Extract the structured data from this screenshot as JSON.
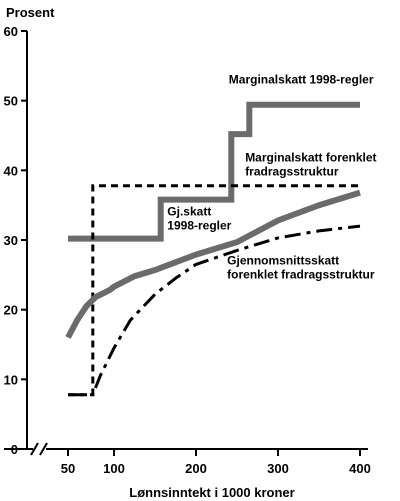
{
  "chart_data": {
    "type": "line",
    "title": "",
    "ylabel": "Prosent",
    "xlabel": "Lønnsinntekt i 1000 kroner",
    "xlim": [
      50,
      400
    ],
    "ylim": [
      0,
      60
    ],
    "x_ticks": [
      50,
      100,
      200,
      300,
      400
    ],
    "y_ticks": [
      0,
      10,
      20,
      30,
      40,
      50,
      60
    ],
    "x_axis_break": true,
    "grid": false,
    "series": [
      {
        "key": "marginal_1998",
        "style": "solid-thick",
        "color": "#6b6b6b",
        "points": [
          [
            50,
            30.2
          ],
          [
            157,
            30.2
          ],
          [
            157,
            35.8
          ],
          [
            243,
            35.8
          ],
          [
            243,
            45.2
          ],
          [
            265,
            45.2
          ],
          [
            265,
            49.4
          ],
          [
            400,
            49.4
          ]
        ]
      },
      {
        "key": "marginal_forenklet",
        "style": "dashed-short",
        "color": "#000000",
        "points": [
          [
            50,
            7.8
          ],
          [
            77,
            7.8
          ],
          [
            77,
            37.8
          ],
          [
            400,
            37.8
          ]
        ]
      },
      {
        "key": "gjsnitt_1998",
        "style": "solid-thick",
        "color": "#6b6b6b",
        "points": [
          [
            50,
            16
          ],
          [
            60,
            18.5
          ],
          [
            70,
            20.5
          ],
          [
            80,
            21.8
          ],
          [
            95,
            22.8
          ],
          [
            100,
            23.3
          ],
          [
            125,
            24.8
          ],
          [
            150,
            25.7
          ],
          [
            200,
            27.9
          ],
          [
            250,
            29.7
          ],
          [
            300,
            32.8
          ],
          [
            350,
            35
          ],
          [
            400,
            36.8
          ]
        ]
      },
      {
        "key": "gjsnitt_forenklet",
        "style": "dash-dot",
        "color": "#000000",
        "points": [
          [
            50,
            7.8
          ],
          [
            77,
            7.8
          ],
          [
            85,
            10.5
          ],
          [
            100,
            14.5
          ],
          [
            120,
            18.5
          ],
          [
            150,
            22.2
          ],
          [
            175,
            24.5
          ],
          [
            200,
            26.5
          ],
          [
            250,
            28.5
          ],
          [
            300,
            30.3
          ],
          [
            350,
            31.3
          ],
          [
            400,
            32
          ]
        ]
      }
    ],
    "annotations": [
      {
        "id": "ann-marginal-1998",
        "lines": [
          "Marginalskatt 1998-regler"
        ],
        "x": 240,
        "y": 52.5
      },
      {
        "id": "ann-marginal-forenklet",
        "lines": [
          "Marginalskatt forenklet",
          "fradragsstruktur"
        ],
        "x": 260,
        "y": 41.3
      },
      {
        "id": "ann-gjskatt-1998",
        "lines": [
          "Gj.skatt",
          "1998-regler"
        ],
        "x": 165,
        "y": 33.5
      },
      {
        "id": "ann-gjsnitt-forenklet",
        "lines": [
          "Gjennomsnittsskatt",
          "forenklet fradragsstruktur"
        ],
        "x": 238,
        "y": 26.5
      }
    ]
  }
}
